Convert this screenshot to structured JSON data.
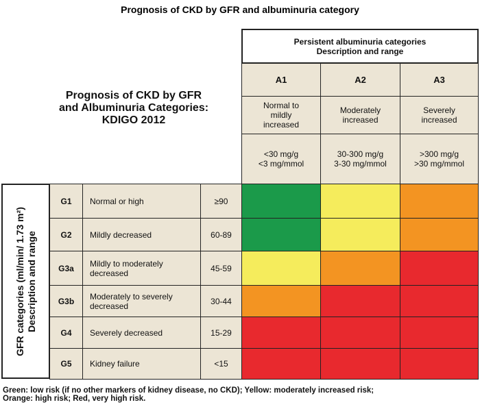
{
  "title": "Prognosis of CKD by GFR and albuminuria category",
  "left_title": [
    "Prognosis of CKD by GFR",
    "and Albuminuria Categories:",
    "KDIGO 2012"
  ],
  "albuminuria_header": [
    "Persistent albuminuria categories",
    "Description and range"
  ],
  "albuminuria": [
    {
      "code": "A1",
      "description": "Normal to mildly increased",
      "range": [
        "<30 mg/g",
        "<3 mg/mmol"
      ]
    },
    {
      "code": "A2",
      "description": "Moderately increased",
      "range": [
        "30-300 mg/g",
        "3-30 mg/mmol"
      ]
    },
    {
      "code": "A3",
      "description": "Severely increased",
      "range": [
        ">300 mg/g",
        ">30 mg/mmol"
      ]
    }
  ],
  "gfr_header": [
    "GFR categories (ml/min/ 1.73 m²)",
    "Description and range"
  ],
  "gfr": [
    {
      "code": "G1",
      "description": "Normal or high",
      "range": "≥90"
    },
    {
      "code": "G2",
      "description": "Mildly decreased",
      "range": "60-89"
    },
    {
      "code": "G3a",
      "description": "Mildly to moderately decreased",
      "range": "45-59"
    },
    {
      "code": "G3b",
      "description": "Moderately to severely decreased",
      "range": "30-44"
    },
    {
      "code": "G4",
      "description": "Severely decreased",
      "range": "15-29"
    },
    {
      "code": "G5",
      "description": "Kidney failure",
      "range": "<15"
    }
  ],
  "risk_colors": [
    [
      "#1b9a4a",
      "#f5ec5c",
      "#f39422"
    ],
    [
      "#1b9a4a",
      "#f5ec5c",
      "#f39422"
    ],
    [
      "#f5ec5c",
      "#f39422",
      "#e8292e"
    ],
    [
      "#f39422",
      "#e8292e",
      "#e8292e"
    ],
    [
      "#e8292e",
      "#e8292e",
      "#e8292e"
    ],
    [
      "#e8292e",
      "#e8292e",
      "#e8292e"
    ]
  ],
  "footer": [
    "Green: low risk (if no other markers of kidney disease, no CKD); Yellow: moderately increased risk;",
    "Orange: high risk; Red, very high risk."
  ]
}
